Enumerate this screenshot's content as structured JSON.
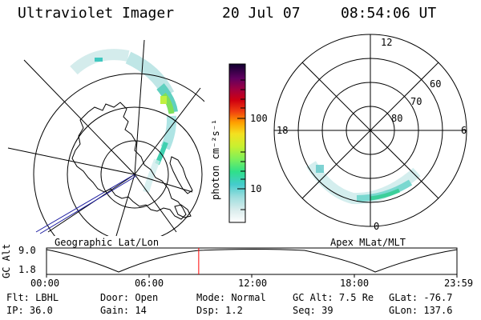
{
  "header": {
    "title": "Ultraviolet Imager",
    "date": "20 Jul 07",
    "time": "08:54:06 UT"
  },
  "geo_panel": {
    "label": "Geographic Lat/Lon"
  },
  "apex_panel": {
    "label": "Apex MLat/MLT",
    "mlt_labels": [
      "12",
      "18",
      "6",
      "0"
    ],
    "lat_labels": [
      "60",
      "70",
      "80"
    ]
  },
  "colorbar": {
    "unit": "photon cm⁻²s⁻¹",
    "ticks": [
      "100",
      "10"
    ]
  },
  "altitude_plot": {
    "ylabel": "GC Alt",
    "yticks": [
      "9.0",
      "1.8"
    ],
    "xticks": [
      "00:00",
      "06:00",
      "12:00",
      "18:00",
      "23:59"
    ],
    "marker_hour": 8.9
  },
  "status": {
    "row1": [
      {
        "key": "Flt:",
        "val": "LBHL"
      },
      {
        "key": "Door:",
        "val": "Open"
      },
      {
        "key": "Mode:",
        "val": "Normal"
      },
      {
        "key": "GC Alt:",
        "val": "7.5 Re"
      },
      {
        "key": "GLat:",
        "val": "-76.7"
      }
    ],
    "row2": [
      {
        "key": "IP:",
        "val": "36.0"
      },
      {
        "key": "Gain:",
        "val": "14"
      },
      {
        "key": "Dsp:",
        "val": "1.2"
      },
      {
        "key": "Seq:",
        "val": "39"
      },
      {
        "key": "GLon:",
        "val": "137.6"
      }
    ]
  }
}
